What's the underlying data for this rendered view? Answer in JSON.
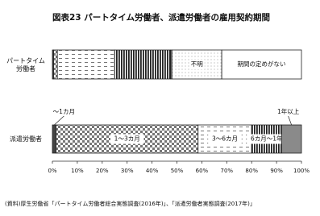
{
  "chart_data": {
    "type": "stacked-barh",
    "title": "図表23 パートタイム労働者、派遣労働者の雇用契約期間",
    "source": "(資料)厚生労働省「パートタイム労働者総合実態調査(2016年)」、「派遣労働者実態調査(2017年)」",
    "categories": [
      "パートタイム\n労働者",
      "派遣労働者"
    ],
    "series": [
      {
        "name": "～1カ月",
        "color": "#444444",
        "pattern": "solid",
        "values": [
          0.5,
          1.5
        ]
      },
      {
        "name": "1～3カ月",
        "color": "#888888",
        "pattern": "checker",
        "values": [
          1.5,
          57
        ]
      },
      {
        "name": "3～6カ月",
        "color": "#777777",
        "pattern": "dash",
        "values": [
          23,
          21.5
        ]
      },
      {
        "name": "6カ月～1年",
        "color": "#222222",
        "pattern": "vstripe",
        "values": [
          22.5,
          12
        ]
      },
      {
        "name": "1年以上",
        "color": "#8a8a8a",
        "pattern": "solid",
        "values": [
          0.5,
          8
        ]
      },
      {
        "name": "不明",
        "color": "#999999",
        "pattern": "dot",
        "values": [
          20,
          0
        ]
      },
      {
        "name": "期間の定めがない",
        "color": "#ffffff",
        "pattern": "none",
        "values": [
          32,
          0
        ]
      }
    ],
    "xlim": [
      0,
      100
    ],
    "xticks": [
      {
        "value": 0,
        "label": "0%"
      },
      {
        "value": 10,
        "label": "10%"
      },
      {
        "value": 20,
        "label": "20%"
      },
      {
        "value": 30,
        "label": "30%"
      },
      {
        "value": 40,
        "label": "40%"
      },
      {
        "value": 50,
        "label": "50%"
      },
      {
        "value": 60,
        "label": "60%"
      },
      {
        "value": 70,
        "label": "70%"
      },
      {
        "value": 80,
        "label": "80%"
      },
      {
        "value": 90,
        "label": "90%"
      },
      {
        "value": 100,
        "label": "100%"
      }
    ]
  }
}
